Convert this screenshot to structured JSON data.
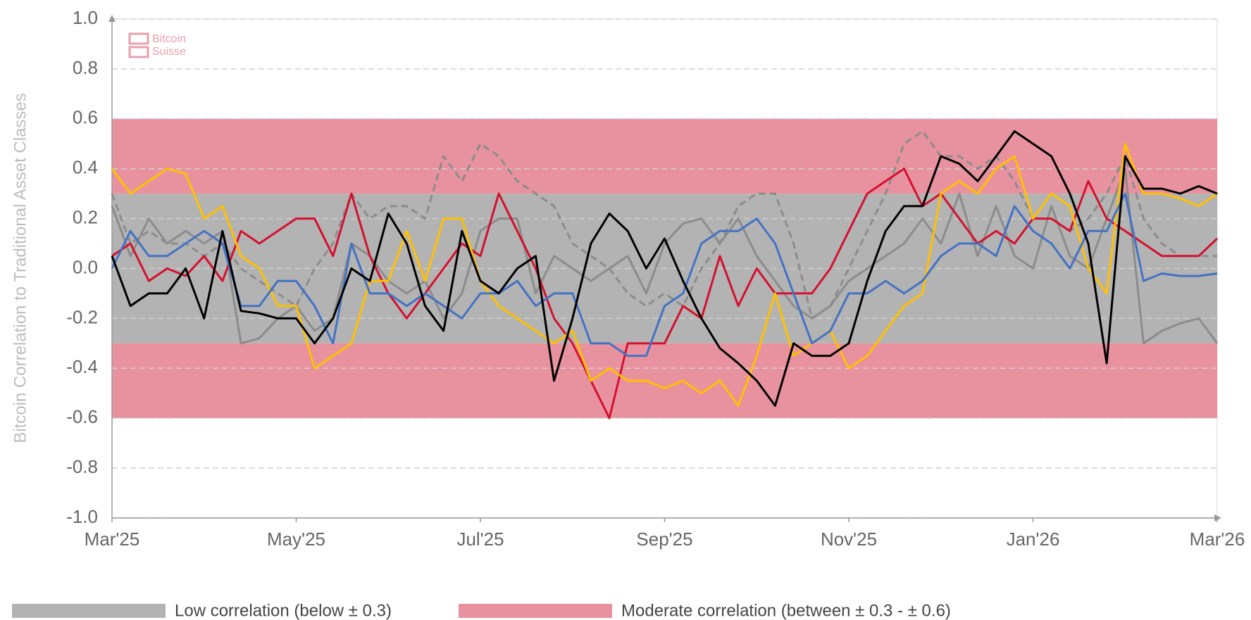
{
  "chart_data": {
    "type": "line",
    "ylabel": "Bitcoin Correlation to Traditional Asset Classes",
    "watermark": [
      "Bitcoin",
      "Suisse"
    ],
    "categories": [
      "Mar'25",
      null,
      null,
      null,
      null,
      null,
      null,
      null,
      null,
      null,
      "May'25",
      null,
      null,
      null,
      null,
      null,
      null,
      null,
      null,
      null,
      "Jul'25",
      null,
      null,
      null,
      null,
      null,
      null,
      null,
      null,
      null,
      "Sep'25",
      null,
      null,
      null,
      null,
      null,
      null,
      null,
      null,
      null,
      "Nov'25",
      null,
      null,
      null,
      null,
      null,
      null,
      null,
      null,
      null,
      "Jan'26",
      null,
      null,
      null,
      null,
      null,
      null,
      null,
      null,
      null,
      "Mar'26"
    ],
    "ylim": [
      -1,
      1
    ],
    "yticks": [
      {
        "value": -1,
        "label": "-1.0"
      },
      -0.8,
      -0.6,
      -0.4,
      -0.2,
      {
        "value": 0,
        "label": "0.0"
      },
      0.2,
      0.4,
      0.6,
      0.8,
      {
        "value": 1,
        "label": "1.0"
      }
    ],
    "grid": true,
    "bands": [
      {
        "label": "Low correlation (below ± 0.3)",
        "color": "#b3b3b3",
        "ranges": [
          [
            -0.3,
            0.3
          ]
        ]
      },
      {
        "label": "Moderate correlation (between ± 0.3 - ± 0.6)",
        "color": "#e8929f",
        "ranges": [
          [
            0.3,
            0.6
          ],
          [
            -0.6,
            -0.3
          ]
        ]
      }
    ],
    "series": [
      {
        "color": "#8c8c8c",
        "dashed": true,
        "values": [
          0.3,
          0.1,
          0.15,
          0.1,
          0.1,
          0.05,
          0.1,
          0.0,
          -0.05,
          -0.1,
          -0.15,
          0.0,
          0.1,
          0.3,
          0.2,
          0.25,
          0.25,
          0.2,
          0.45,
          0.35,
          0.5,
          0.45,
          0.35,
          0.3,
          0.25,
          0.1,
          0.05,
          0.0,
          -0.1,
          -0.15,
          -0.1,
          -0.15,
          0.0,
          0.1,
          0.25,
          0.3,
          0.3,
          0.1,
          -0.2,
          -0.15,
          0.0,
          0.15,
          0.3,
          0.5,
          0.55,
          0.45,
          0.45,
          0.4,
          0.45,
          0.35,
          0.2,
          0.2,
          0.15,
          0.2,
          0.3,
          0.45,
          0.2,
          0.1,
          0.05,
          0.05,
          0.05
        ]
      },
      {
        "color": "#8c8c8c",
        "dashed": false,
        "values": [
          0.25,
          0.05,
          0.2,
          0.1,
          0.15,
          0.1,
          0.15,
          -0.3,
          -0.28,
          -0.2,
          -0.15,
          -0.25,
          -0.2,
          0.1,
          0.05,
          -0.05,
          -0.1,
          -0.05,
          -0.2,
          -0.1,
          0.15,
          0.2,
          0.2,
          -0.1,
          0.05,
          0.0,
          -0.05,
          0.0,
          0.05,
          -0.1,
          0.1,
          0.18,
          0.2,
          0.1,
          0.2,
          0.05,
          -0.05,
          -0.15,
          -0.2,
          -0.15,
          -0.05,
          0.0,
          0.05,
          0.1,
          0.2,
          0.1,
          0.3,
          0.05,
          0.25,
          0.05,
          0.0,
          0.25,
          0.05,
          0.0,
          0.2,
          0.4,
          -0.3,
          -0.25,
          -0.22,
          -0.2,
          -0.3
        ]
      },
      {
        "color": "#d5102e",
        "dashed": false,
        "values": [
          0.05,
          0.1,
          -0.05,
          0.0,
          -0.03,
          0.05,
          -0.05,
          0.15,
          0.1,
          0.15,
          0.2,
          0.2,
          0.05,
          0.3,
          0.05,
          -0.1,
          -0.2,
          -0.1,
          0.0,
          0.1,
          0.05,
          0.3,
          0.15,
          0.0,
          -0.2,
          -0.3,
          -0.45,
          -0.6,
          -0.3,
          -0.3,
          -0.3,
          -0.15,
          -0.2,
          0.05,
          -0.15,
          0.0,
          -0.1,
          -0.1,
          -0.1,
          0.0,
          0.15,
          0.3,
          0.35,
          0.4,
          0.25,
          0.3,
          0.2,
          0.1,
          0.15,
          0.1,
          0.2,
          0.2,
          0.15,
          0.35,
          0.2,
          0.15,
          0.1,
          0.05,
          0.05,
          0.05,
          0.12
        ]
      },
      {
        "color": "#ffc000",
        "dashed": false,
        "values": [
          0.4,
          0.3,
          0.35,
          0.4,
          0.38,
          0.2,
          0.25,
          0.05,
          0.0,
          -0.15,
          -0.15,
          -0.4,
          -0.35,
          -0.3,
          -0.05,
          -0.05,
          0.15,
          -0.05,
          0.2,
          0.2,
          -0.05,
          -0.15,
          -0.2,
          -0.25,
          -0.3,
          -0.25,
          -0.45,
          -0.4,
          -0.45,
          -0.45,
          -0.48,
          -0.45,
          -0.5,
          -0.45,
          -0.55,
          -0.35,
          -0.1,
          -0.35,
          -0.3,
          -0.25,
          -0.4,
          -0.35,
          -0.25,
          -0.15,
          -0.1,
          0.3,
          0.35,
          0.3,
          0.4,
          0.45,
          0.2,
          0.3,
          0.25,
          0.0,
          -0.1,
          0.5,
          0.3,
          0.3,
          0.28,
          0.25,
          0.3
        ]
      },
      {
        "color": "#4472c4",
        "dashed": false,
        "values": [
          0.0,
          0.15,
          0.05,
          0.05,
          0.1,
          0.15,
          0.1,
          -0.15,
          -0.15,
          -0.05,
          -0.05,
          -0.15,
          -0.3,
          0.1,
          -0.1,
          -0.1,
          -0.15,
          -0.1,
          -0.15,
          -0.2,
          -0.1,
          -0.1,
          -0.05,
          -0.15,
          -0.1,
          -0.1,
          -0.3,
          -0.3,
          -0.35,
          -0.35,
          -0.15,
          -0.1,
          0.1,
          0.15,
          0.15,
          0.2,
          0.1,
          -0.1,
          -0.3,
          -0.25,
          -0.1,
          -0.1,
          -0.05,
          -0.1,
          -0.05,
          0.05,
          0.1,
          0.1,
          0.05,
          0.25,
          0.15,
          0.1,
          0.0,
          0.15,
          0.15,
          0.3,
          -0.05,
          -0.02,
          -0.03,
          -0.03,
          -0.02
        ]
      },
      {
        "color": "#000000",
        "dashed": false,
        "values": [
          0.05,
          -0.15,
          -0.1,
          -0.1,
          0.0,
          -0.2,
          0.15,
          -0.17,
          -0.18,
          -0.2,
          -0.2,
          -0.3,
          -0.2,
          0.0,
          -0.05,
          0.22,
          0.1,
          -0.15,
          -0.25,
          0.15,
          -0.05,
          -0.1,
          0.0,
          0.05,
          -0.45,
          -0.2,
          0.1,
          0.22,
          0.15,
          0.0,
          0.12,
          -0.05,
          -0.2,
          -0.32,
          -0.38,
          -0.45,
          -0.55,
          -0.3,
          -0.35,
          -0.35,
          -0.3,
          -0.05,
          0.15,
          0.25,
          0.25,
          0.45,
          0.42,
          0.35,
          0.45,
          0.55,
          0.5,
          0.45,
          0.3,
          0.1,
          -0.38,
          0.45,
          0.32,
          0.32,
          0.3,
          0.33,
          0.3
        ]
      }
    ]
  }
}
